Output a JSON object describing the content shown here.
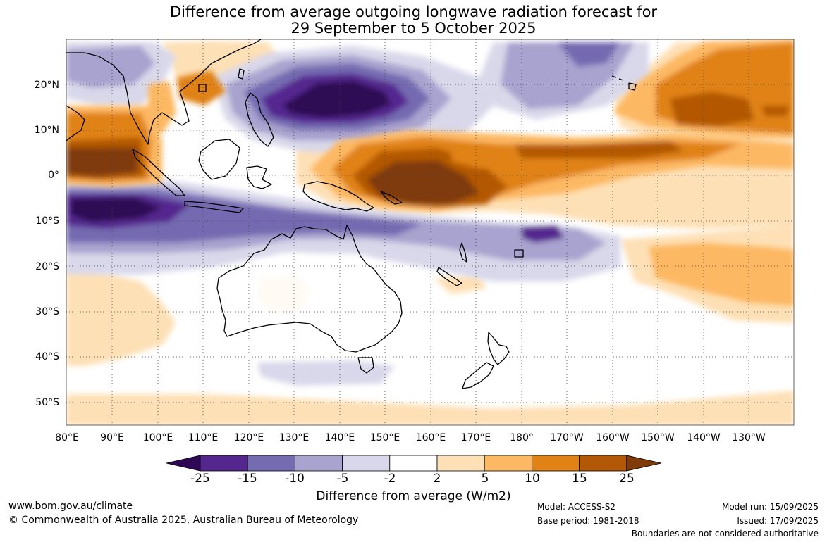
{
  "title_line1": "Difference from average outgoing longwave radiation forecast for",
  "title_line2": "29 September to 5 October 2025",
  "lon_labels": [
    "80°E",
    "90°E",
    "100°E",
    "110°E",
    "120°E",
    "130°E",
    "140°E",
    "150°E",
    "160°E",
    "170°E",
    "180°",
    "170°W",
    "160°W",
    "150°W",
    "140°W",
    "130°W"
  ],
  "lat_labels": [
    "20°N",
    "10°N",
    "0°",
    "10°S",
    "20°S",
    "30°S",
    "40°S",
    "50°S"
  ],
  "colorbar": {
    "title": "Difference from average (W/m2)",
    "tick_labels": [
      "-25",
      "-15",
      "-10",
      "-5",
      "-2",
      "2",
      "5",
      "10",
      "15",
      "25"
    ],
    "colors": [
      "#2e0854",
      "#54278f",
      "#756bb1",
      "#a9a3cf",
      "#d9d8ea",
      "#ffffff",
      "#fee0b6",
      "#fdb863",
      "#e08214",
      "#b35806",
      "#7f3b08"
    ]
  },
  "footer": {
    "website": "www.bom.gov.au/climate",
    "copyright": "© Commonwealth of Australia 2025, Australian Bureau of Meteorology",
    "model": "Model: ACCESS-S2",
    "base_period": "Base period: 1981-2018",
    "model_run": "Model run: 15/09/2025",
    "issued": "Issued: 17/09/2025",
    "disclaimer": "Boundaries are not considered authoritative"
  }
}
